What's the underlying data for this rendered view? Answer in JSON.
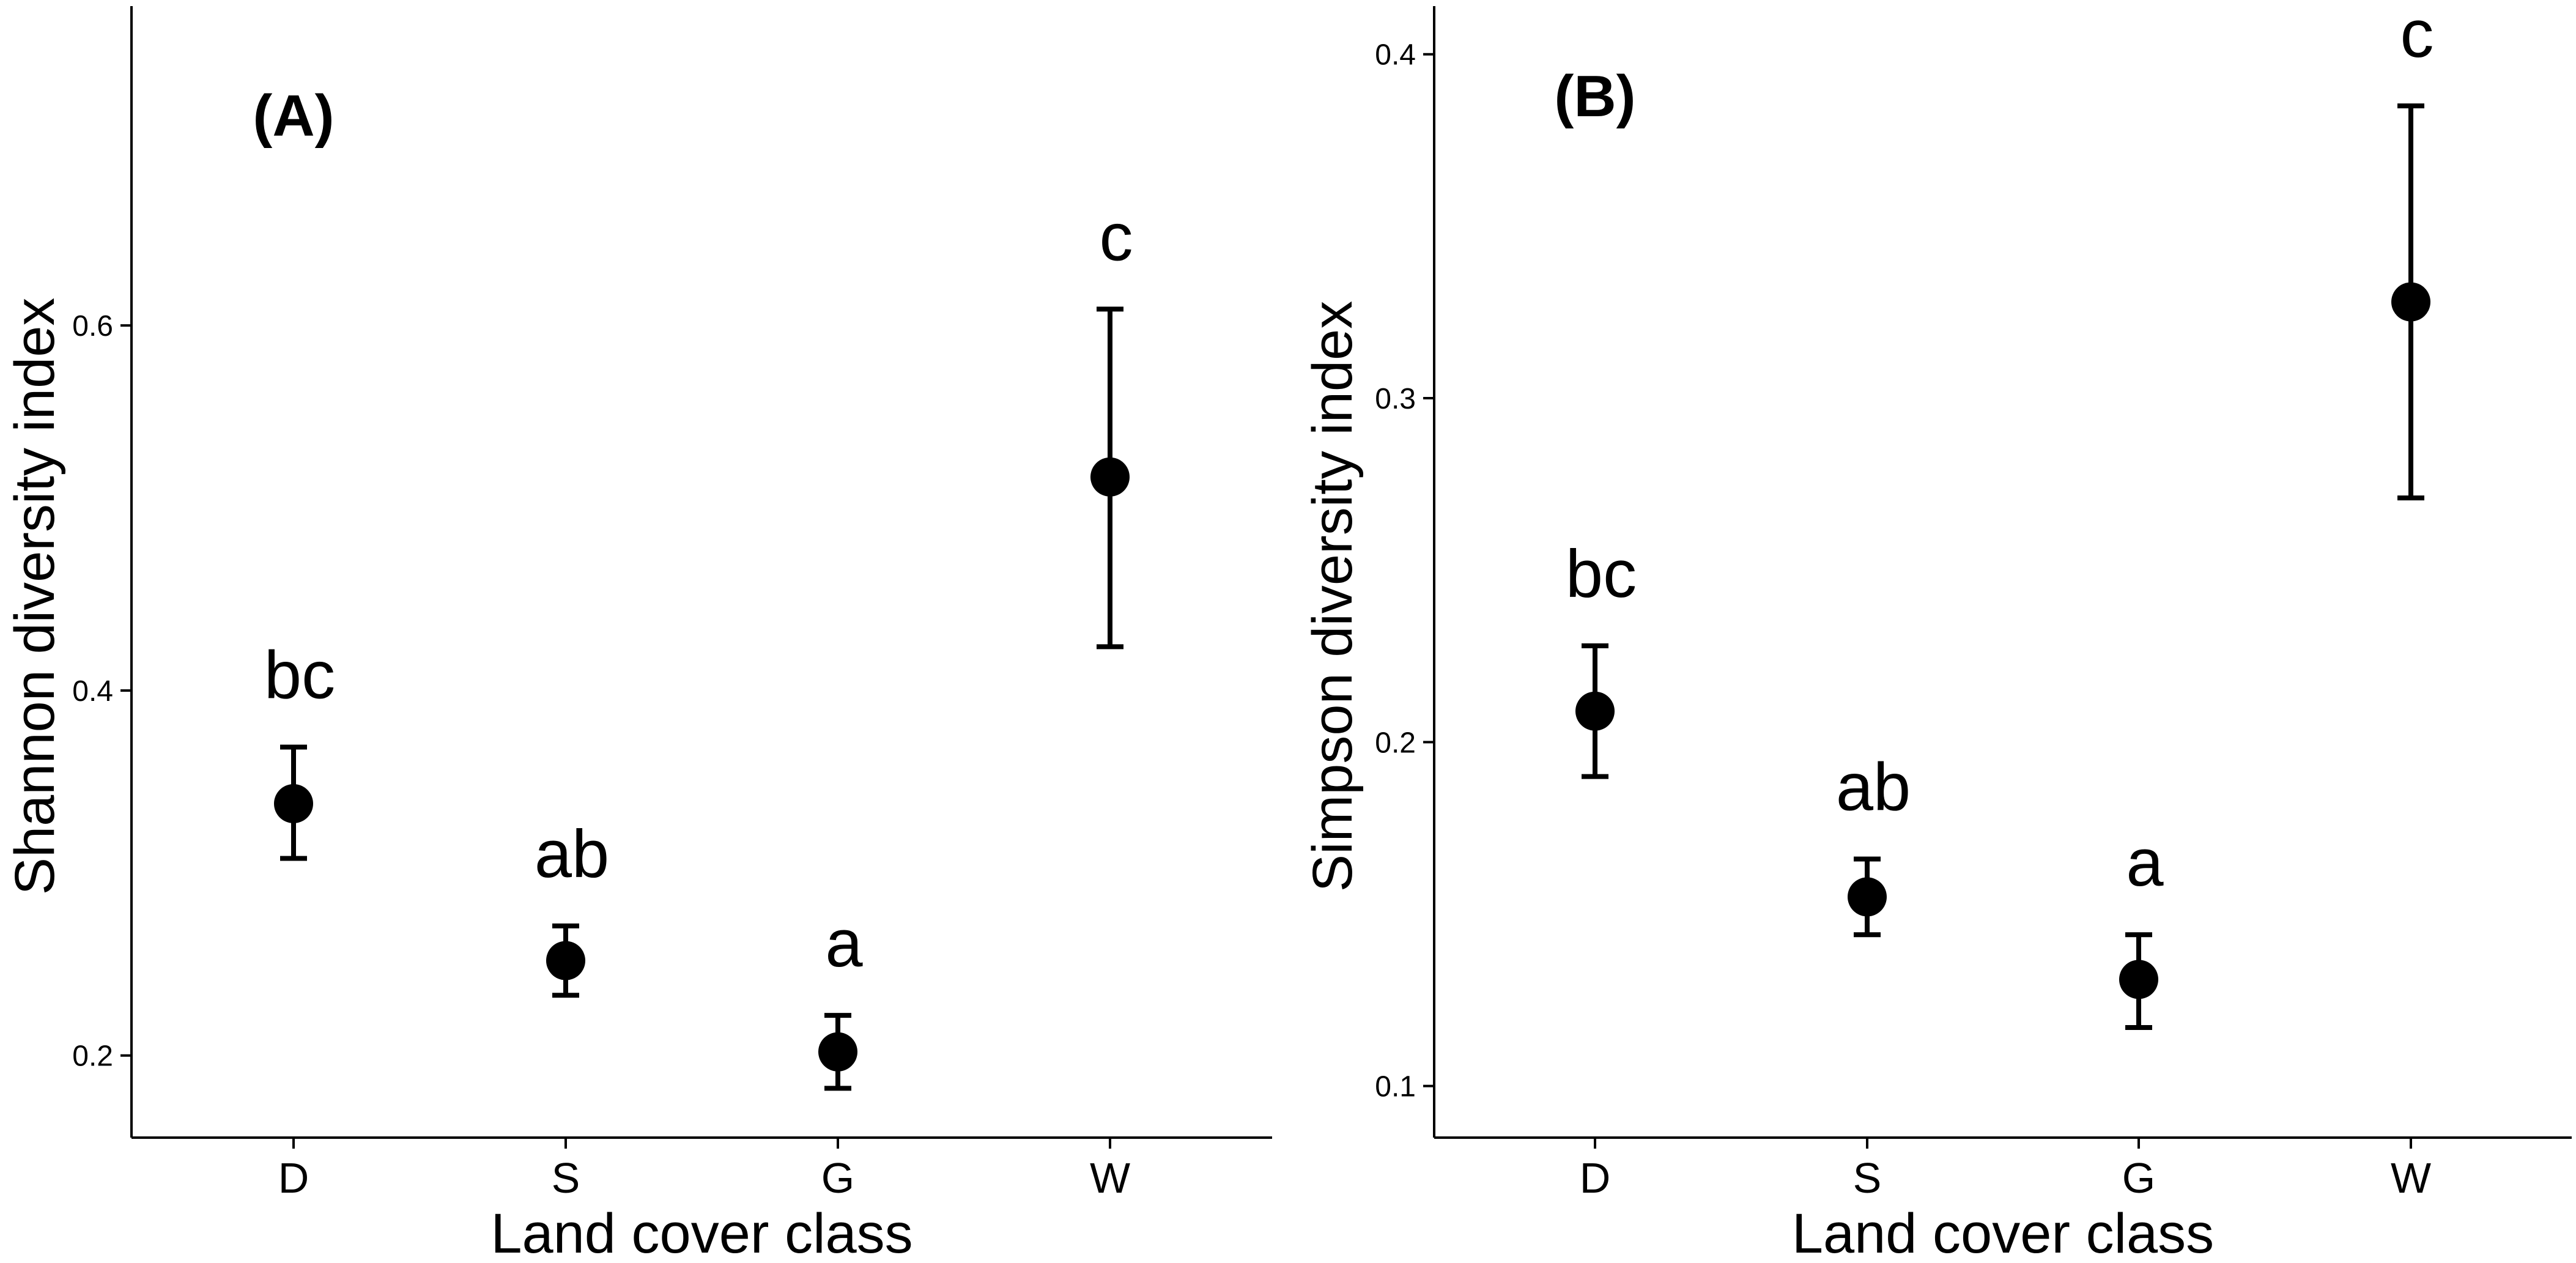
{
  "chart_data": [
    {
      "type": "scatter",
      "panel_label": "(A)",
      "xlabel": "Land cover class",
      "ylabel": "Shannon diversity index",
      "categories": [
        "D",
        "S",
        "G",
        "W"
      ],
      "values": [
        0.338,
        0.252,
        0.202,
        0.517
      ],
      "error_low": [
        0.308,
        0.233,
        0.182,
        0.424
      ],
      "error_high": [
        0.369,
        0.271,
        0.222,
        0.609
      ],
      "letters": [
        "bc",
        "ab",
        "a",
        "c"
      ],
      "yticks": [
        "0.2",
        "0.4",
        "0.6"
      ],
      "ylim": [
        0.155,
        0.775
      ],
      "grid": false,
      "legend": false
    },
    {
      "type": "scatter",
      "panel_label": "(B)",
      "xlabel": "Land cover class",
      "ylabel": "Simpson diversity index",
      "categories": [
        "D",
        "S",
        "G",
        "W"
      ],
      "values": [
        0.209,
        0.155,
        0.131,
        0.328
      ],
      "error_low": [
        0.19,
        0.144,
        0.117,
        0.271
      ],
      "error_high": [
        0.228,
        0.166,
        0.144,
        0.385
      ],
      "letters": [
        "bc",
        "ab",
        "a",
        "c"
      ],
      "yticks": [
        "0.1",
        "0.2",
        "0.3",
        "0.4"
      ],
      "ylim": [
        0.085,
        0.414
      ],
      "grid": false,
      "legend": false
    }
  ]
}
